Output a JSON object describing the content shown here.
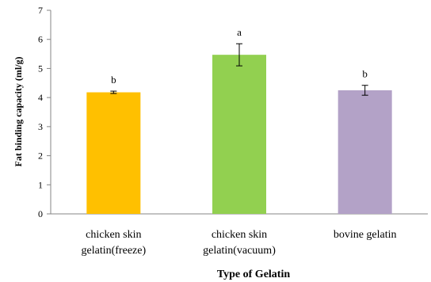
{
  "chart_data": {
    "type": "bar",
    "categories": [
      [
        "chicken skin",
        "gelatin(freeze)"
      ],
      [
        "chicken skin",
        "gelatin(vacuum)"
      ],
      [
        "bovine gelatin"
      ]
    ],
    "values": [
      4.18,
      5.47,
      4.25
    ],
    "errors": [
      0.04,
      0.38,
      0.17
    ],
    "annotations": [
      "b",
      "a",
      "b"
    ],
    "colors": [
      "#FFC000",
      "#92D050",
      "#B3A2C7"
    ],
    "xlabel": "Type of Gelatin",
    "ylabel": "Fat binding capacity (ml/g)",
    "ylim": [
      0,
      7
    ],
    "yticks": [
      0,
      1,
      2,
      3,
      4,
      5,
      6,
      7
    ],
    "grid": false,
    "legend": "none"
  }
}
